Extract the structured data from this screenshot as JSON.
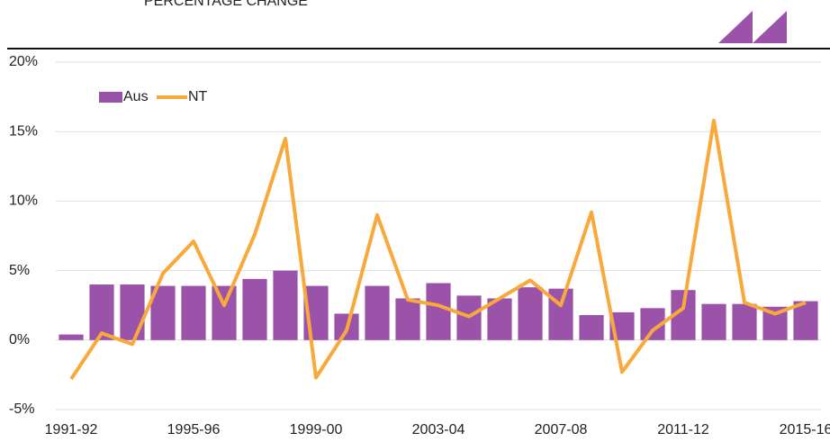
{
  "chart_data": {
    "type": "bar_line",
    "header": "PERCENTAGE CHANGE",
    "categories": [
      "1991-92",
      null,
      null,
      null,
      "1995-96",
      null,
      null,
      null,
      "1999-00",
      null,
      null,
      null,
      "2003-04",
      null,
      null,
      null,
      "2007-08",
      null,
      null,
      null,
      "2011-12",
      null,
      null,
      null,
      "2015-16"
    ],
    "series": [
      {
        "name": "Aus",
        "color": "#9b53a9",
        "kind": "bar",
        "values": [
          0.4,
          4.0,
          4.0,
          3.9,
          3.9,
          3.9,
          4.4,
          5.0,
          3.9,
          1.9,
          3.9,
          3.0,
          4.1,
          3.2,
          3.0,
          3.8,
          3.7,
          1.8,
          2.0,
          2.3,
          3.6,
          2.6,
          2.6,
          2.4,
          2.8
        ]
      },
      {
        "name": "NT",
        "color": "#f9a83b",
        "kind": "line",
        "values": [
          -2.8,
          0.5,
          -0.3,
          4.8,
          7.1,
          2.5,
          7.6,
          14.5,
          -2.7,
          0.7,
          9.0,
          2.9,
          2.5,
          1.7,
          3.0,
          4.3,
          2.5,
          9.2,
          -2.3,
          0.7,
          2.3,
          15.8,
          2.7,
          1.9,
          2.7
        ]
      }
    ],
    "ylim": [
      -5,
      20
    ],
    "yticks": [
      {
        "value": -5,
        "label": "-5%"
      },
      {
        "value": 0,
        "label": "0%"
      },
      {
        "value": 5,
        "label": "5%"
      },
      {
        "value": 10,
        "label": "10%"
      },
      {
        "value": 15,
        "label": "15%"
      },
      {
        "value": 20,
        "label": "20%"
      }
    ],
    "grid": true,
    "legend": "top-left"
  }
}
